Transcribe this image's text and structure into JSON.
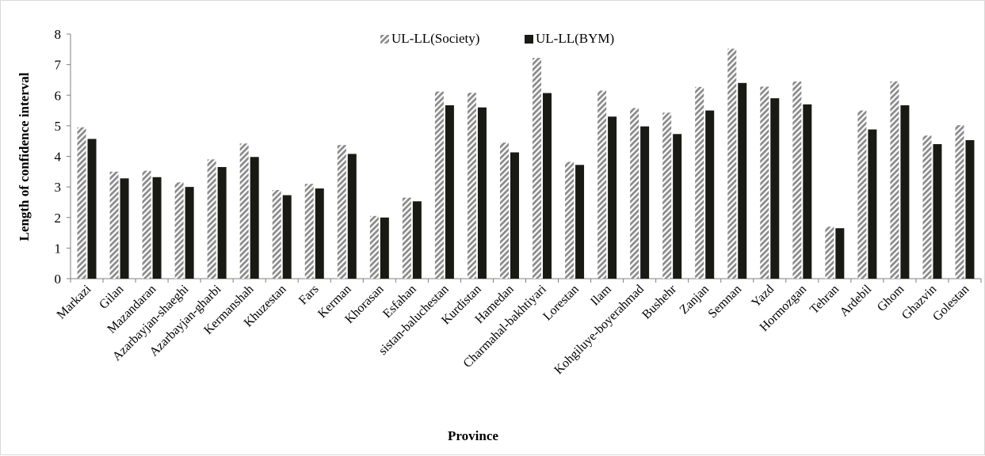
{
  "chart_data": {
    "type": "bar",
    "title": "",
    "xlabel": "Province",
    "ylabel": "Length of confidence interval",
    "ylim": [
      0,
      8
    ],
    "yticks": [
      0,
      1,
      2,
      3,
      4,
      5,
      6,
      7,
      8
    ],
    "grid": false,
    "legend_position": "top-center",
    "categories": [
      "Markazi",
      "Gilan",
      "Mazandaran",
      "Azarbayjan-shaeghi",
      "Azarbayjan-gharbi",
      "Kermanshah",
      "Khuzestan",
      "Fars",
      "Kerman",
      "Khorasan",
      "Esfahan",
      "sistan-baluchestan",
      "Kurdistan",
      "Hamedan",
      "Charmahal-bakhtiyari",
      "Lorestan",
      "Ilam",
      "Kohgiluye-boyerahmad",
      "Bushehr",
      "Zanjan",
      "Semnan",
      "Yazd",
      "Hormozgan",
      "Tehran",
      "Ardebil",
      "Ghom",
      "Ghazvin",
      "Golestan"
    ],
    "series": [
      {
        "name": "UL-LL(Society)",
        "color": "#8c8c8c",
        "pattern": "diagonal-hatch",
        "values": [
          4.95,
          3.5,
          3.53,
          3.15,
          3.9,
          4.42,
          2.9,
          3.1,
          4.37,
          2.05,
          2.65,
          6.12,
          6.08,
          4.45,
          7.22,
          3.82,
          6.15,
          5.58,
          5.43,
          6.27,
          7.52,
          6.28,
          6.45,
          1.7,
          5.5,
          6.45,
          4.68,
          5.02
        ]
      },
      {
        "name": "UL-LL(BYM)",
        "color": "#1a1a14",
        "pattern": "solid",
        "values": [
          4.57,
          3.28,
          3.32,
          3.0,
          3.65,
          3.98,
          2.73,
          2.95,
          4.08,
          2.0,
          2.53,
          5.67,
          5.6,
          4.13,
          6.07,
          3.72,
          5.3,
          4.98,
          4.73,
          5.5,
          6.4,
          5.9,
          5.7,
          1.65,
          4.88,
          5.67,
          4.4,
          4.53
        ]
      }
    ]
  }
}
